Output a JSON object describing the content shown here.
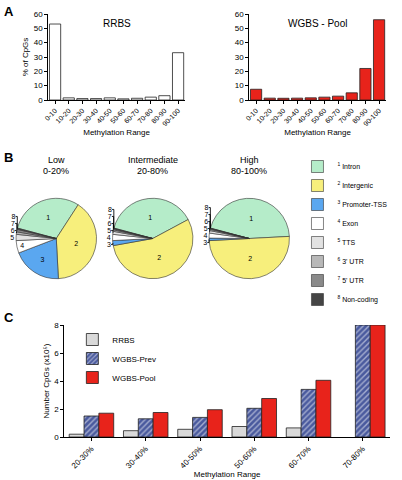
{
  "chart_data": [
    {
      "type": "bar",
      "title": "RRBS",
      "annotations": [
        "A"
      ],
      "categories": [
        "0-10",
        "10-20",
        "20-30",
        "30-40",
        "40-50",
        "50-60",
        "60-70",
        "70-80",
        "80-90",
        "90-100"
      ],
      "values": [
        53,
        1.5,
        1,
        1,
        1.5,
        0.8,
        1.2,
        2,
        3,
        33
      ],
      "color": "#ffffff",
      "xlabel": "Methylation Range",
      "ylabel": "% of CpGs",
      "ylim": [
        0,
        60
      ],
      "yticks": [
        0,
        10,
        20,
        30,
        40,
        50,
        60
      ]
    },
    {
      "type": "bar",
      "title": "WGBS - Pool",
      "categories": [
        "0-10",
        "10-20",
        "20-30",
        "30-40",
        "40-50",
        "50-60",
        "60-70",
        "70-80",
        "80-90",
        "90-100"
      ],
      "values": [
        7.5,
        1.3,
        1.2,
        1.3,
        1.5,
        2,
        2.7,
        5,
        22,
        56
      ],
      "color": "#e8231b",
      "xlabel": "Methylation Range",
      "ylim": [
        0,
        60
      ],
      "yticks": [
        0,
        10,
        20,
        30,
        40,
        50,
        60
      ]
    },
    {
      "type": "pie",
      "title": "Low",
      "subtitle": "0-20%",
      "annotations": [
        "B"
      ],
      "categories": [
        "Intron",
        "Intergenic",
        "Promoter-TSS",
        "Exon",
        "TTS",
        "3' UTR",
        "5' UTR",
        "Non-coding"
      ],
      "category_numbers": [
        "1",
        "2",
        "3",
        "4",
        "5",
        "6",
        "7",
        "8"
      ],
      "values": [
        30,
        40,
        20,
        5,
        2.5,
        1,
        1,
        0.5
      ],
      "colors": [
        "#b5ecc9",
        "#f7ef7c",
        "#5aa7f0",
        "#ffffff",
        "#e2e2e2",
        "#b8b8b8",
        "#8a8a8a",
        "#454545"
      ],
      "legend": "right"
    },
    {
      "type": "pie",
      "title": "Intermediate",
      "subtitle": "20-80%",
      "categories": [
        "Intron",
        "Intergenic",
        "Promoter-TSS",
        "Exon",
        "TTS",
        "3' UTR",
        "5' UTR",
        "Non-coding"
      ],
      "category_numbers": [
        "1",
        "2",
        "3",
        "4",
        "5",
        "6",
        "7",
        "8"
      ],
      "values": [
        38,
        55,
        2,
        2.5,
        1.2,
        0.6,
        0.4,
        0.3
      ],
      "colors": [
        "#b5ecc9",
        "#f7ef7c",
        "#5aa7f0",
        "#ffffff",
        "#e2e2e2",
        "#b8b8b8",
        "#8a8a8a",
        "#454545"
      ]
    },
    {
      "type": "pie",
      "title": "High",
      "subtitle": "80-100%",
      "categories": [
        "Intron",
        "Intergenic",
        "Promoter-TSS",
        "Exon",
        "TTS",
        "3' UTR",
        "5' UTR",
        "Non-coding"
      ],
      "category_numbers": [
        "1",
        "2",
        "3",
        "4",
        "5",
        "6",
        "7",
        "8"
      ],
      "values": [
        45,
        50,
        1,
        2,
        1,
        0.5,
        0.3,
        0.2
      ],
      "colors": [
        "#b5ecc9",
        "#f7ef7c",
        "#5aa7f0",
        "#ffffff",
        "#e2e2e2",
        "#b8b8b8",
        "#8a8a8a",
        "#454545"
      ]
    },
    {
      "type": "bar",
      "annotations": [
        "C"
      ],
      "categories": [
        "20-30%",
        "30-40%",
        "40-50%",
        "50-60%",
        "60-70%",
        "70-80%"
      ],
      "series": [
        {
          "name": "RRBS",
          "color": "#d9d9d9",
          "values": [
            0.2,
            0.45,
            0.55,
            0.75,
            0.65,
            null
          ]
        },
        {
          "name": "WGBS-Prev",
          "color": "#4a5a9e",
          "marker": "hatch",
          "values": [
            1.5,
            1.3,
            1.4,
            2.05,
            3.4,
            8
          ]
        },
        {
          "name": "WGBS-Pool",
          "color": "#e8231b",
          "values": [
            1.7,
            1.75,
            1.95,
            2.75,
            4.05,
            8
          ]
        }
      ],
      "xlabel": "Methylation Range",
      "ylabel": "Number CpGs (x10⁵)",
      "ylim": [
        0,
        8
      ],
      "yticks": [
        0,
        2,
        4,
        6,
        8
      ],
      "legend": "upper left"
    }
  ]
}
